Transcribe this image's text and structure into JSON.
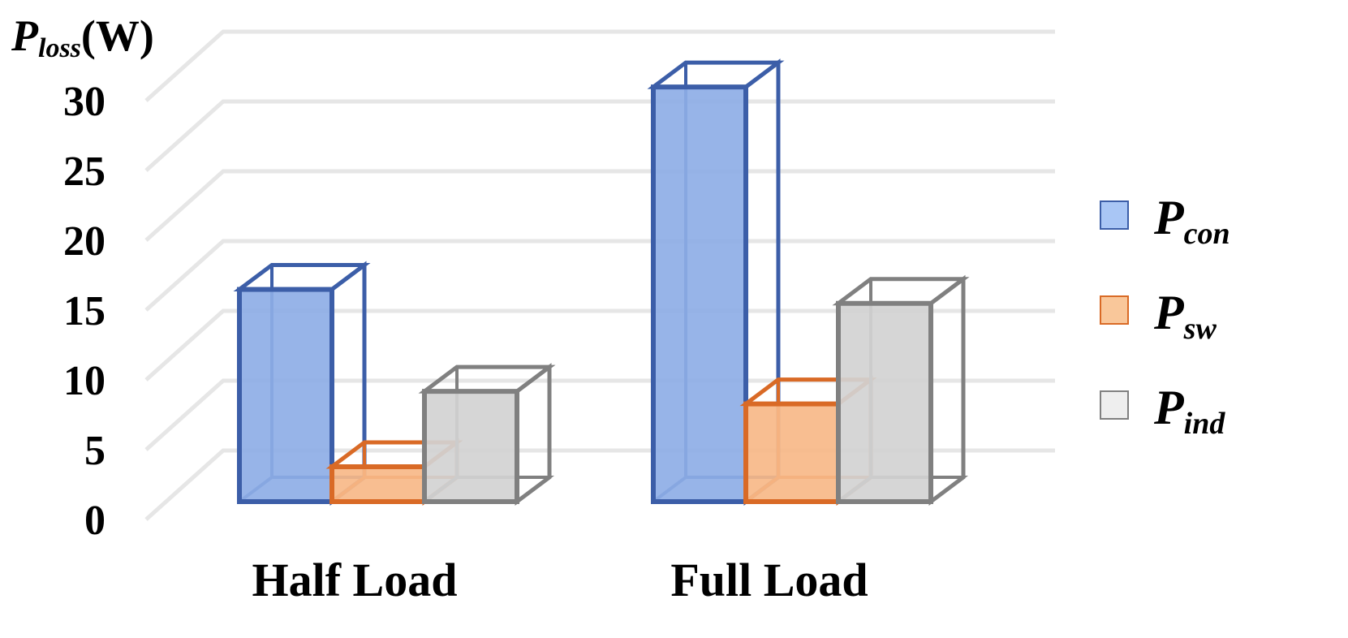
{
  "chart_data": {
    "type": "bar",
    "style": "3d-clustered-column",
    "ylabel_main": "P",
    "ylabel_sub": "loss",
    "ylabel_unit": "(W)",
    "ylim": [
      0,
      30
    ],
    "yticks": [
      "0",
      "5",
      "10",
      "15",
      "20",
      "25",
      "30"
    ],
    "categories": [
      "Half Load",
      "Full Load"
    ],
    "series": [
      {
        "main": "P",
        "sub": "con",
        "values": [
          15.2,
          29.7
        ],
        "fill": "#8eaee6",
        "stroke": "#3c5ea8",
        "swatch": "#a9c6f5"
      },
      {
        "main": "P",
        "sub": "sw",
        "values": [
          2.5,
          7.0
        ],
        "fill": "#f7b888",
        "stroke": "#d96a26",
        "swatch": "#f9c79a"
      },
      {
        "main": "P",
        "sub": "ind",
        "values": [
          7.9,
          14.2
        ],
        "fill": "#d3d3d3",
        "stroke": "#808080",
        "swatch": "#eeeeee"
      }
    ],
    "legend_position": "right",
    "grid": true
  }
}
